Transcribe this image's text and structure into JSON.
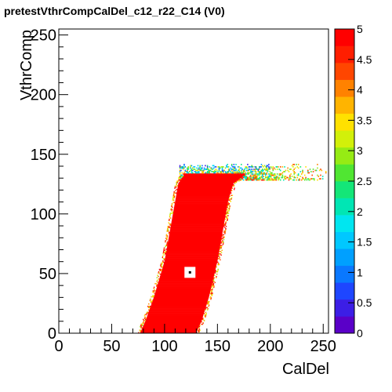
{
  "chart_data": {
    "type": "heatmap",
    "title": "pretestVthrCompCalDel_c12_r22_C14 (V0)",
    "xlabel": "CalDel",
    "ylabel": "VthrComp",
    "xlim": [
      0,
      255
    ],
    "ylim": [
      0,
      255
    ],
    "xticks": [
      "0",
      "50",
      "100",
      "150",
      "200",
      "250"
    ],
    "yticks": [
      "0",
      "50",
      "100",
      "150",
      "200",
      "250"
    ],
    "zlim": [
      0,
      5
    ],
    "zticks": [
      "0",
      "0.5",
      "1",
      "1.5",
      "2",
      "2.5",
      "3",
      "3.5",
      "4",
      "4.5",
      "5"
    ],
    "grid": false,
    "palette": [
      "#5a00c8",
      "#3c1ee6",
      "#1e46ff",
      "#0a78ff",
      "#00a0ff",
      "#00c8ff",
      "#00e6f0",
      "#00e6b4",
      "#14e678",
      "#50e632",
      "#96eb14",
      "#d2f00a",
      "#ffe100",
      "#ffb400",
      "#ff8200",
      "#ff4600",
      "#ff1e00",
      "#ff0000"
    ],
    "regions": [
      {
        "desc": "saturated response band",
        "value": 5,
        "left_edge": [
          [
            0,
            77
          ],
          [
            10,
            82
          ],
          [
            30,
            90
          ],
          [
            60,
            100
          ],
          [
            90,
            106
          ],
          [
            110,
            110
          ],
          [
            125,
            113
          ],
          [
            132,
            118
          ]
        ],
        "right_edge": [
          [
            0,
            130
          ],
          [
            10,
            135
          ],
          [
            30,
            142
          ],
          [
            60,
            150
          ],
          [
            90,
            156
          ],
          [
            110,
            160
          ],
          [
            125,
            165
          ],
          [
            132,
            175
          ]
        ]
      },
      {
        "desc": "transition plateau",
        "value_range": [
          1,
          5
        ],
        "y_range": [
          128,
          141
        ],
        "x_range": [
          110,
          250
        ]
      }
    ],
    "marker": {
      "x": 124,
      "y": 51
    }
  }
}
